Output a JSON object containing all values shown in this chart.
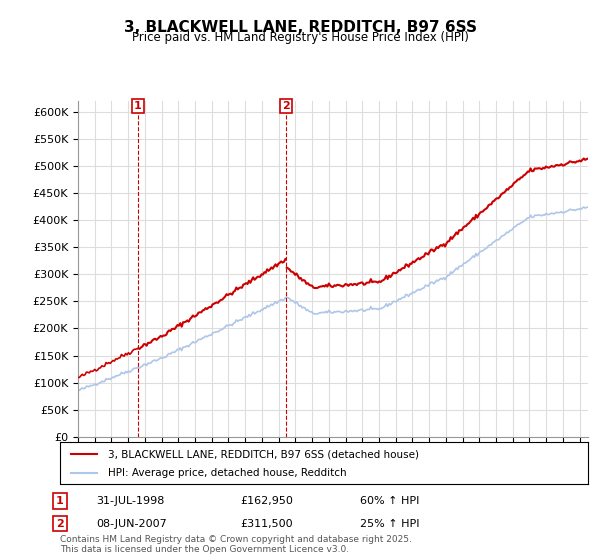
{
  "title": "3, BLACKWELL LANE, REDDITCH, B97 6SS",
  "subtitle": "Price paid vs. HM Land Registry's House Price Index (HPI)",
  "xlabel": "",
  "ylabel": "",
  "ylim": [
    0,
    620000
  ],
  "xlim_start": 1995.0,
  "xlim_end": 2025.5,
  "sale1_date": 1998.58,
  "sale1_price": 162950,
  "sale1_label": "1",
  "sale2_date": 2007.44,
  "sale2_price": 311500,
  "sale2_label": "2",
  "hpi_color": "#aec6e8",
  "price_color": "#cc0000",
  "annotation_color": "#cc0000",
  "grid_color": "#dddddd",
  "bg_color": "#ffffff",
  "legend_label_price": "3, BLACKWELL LANE, REDDITCH, B97 6SS (detached house)",
  "legend_label_hpi": "HPI: Average price, detached house, Redditch",
  "table_rows": [
    {
      "num": "1",
      "date": "31-JUL-1998",
      "price": "£162,950",
      "change": "60% ↑ HPI"
    },
    {
      "num": "2",
      "date": "08-JUN-2007",
      "price": "£311,500",
      "change": "25% ↑ HPI"
    }
  ],
  "footnote": "Contains HM Land Registry data © Crown copyright and database right 2025.\nThis data is licensed under the Open Government Licence v3.0.",
  "yticks": [
    0,
    50000,
    100000,
    150000,
    200000,
    250000,
    300000,
    350000,
    400000,
    450000,
    500000,
    550000,
    600000
  ],
  "ytick_labels": [
    "£0",
    "£50K",
    "£100K",
    "£150K",
    "£200K",
    "£250K",
    "£300K",
    "£350K",
    "£400K",
    "£450K",
    "£500K",
    "£550K",
    "£600K"
  ]
}
